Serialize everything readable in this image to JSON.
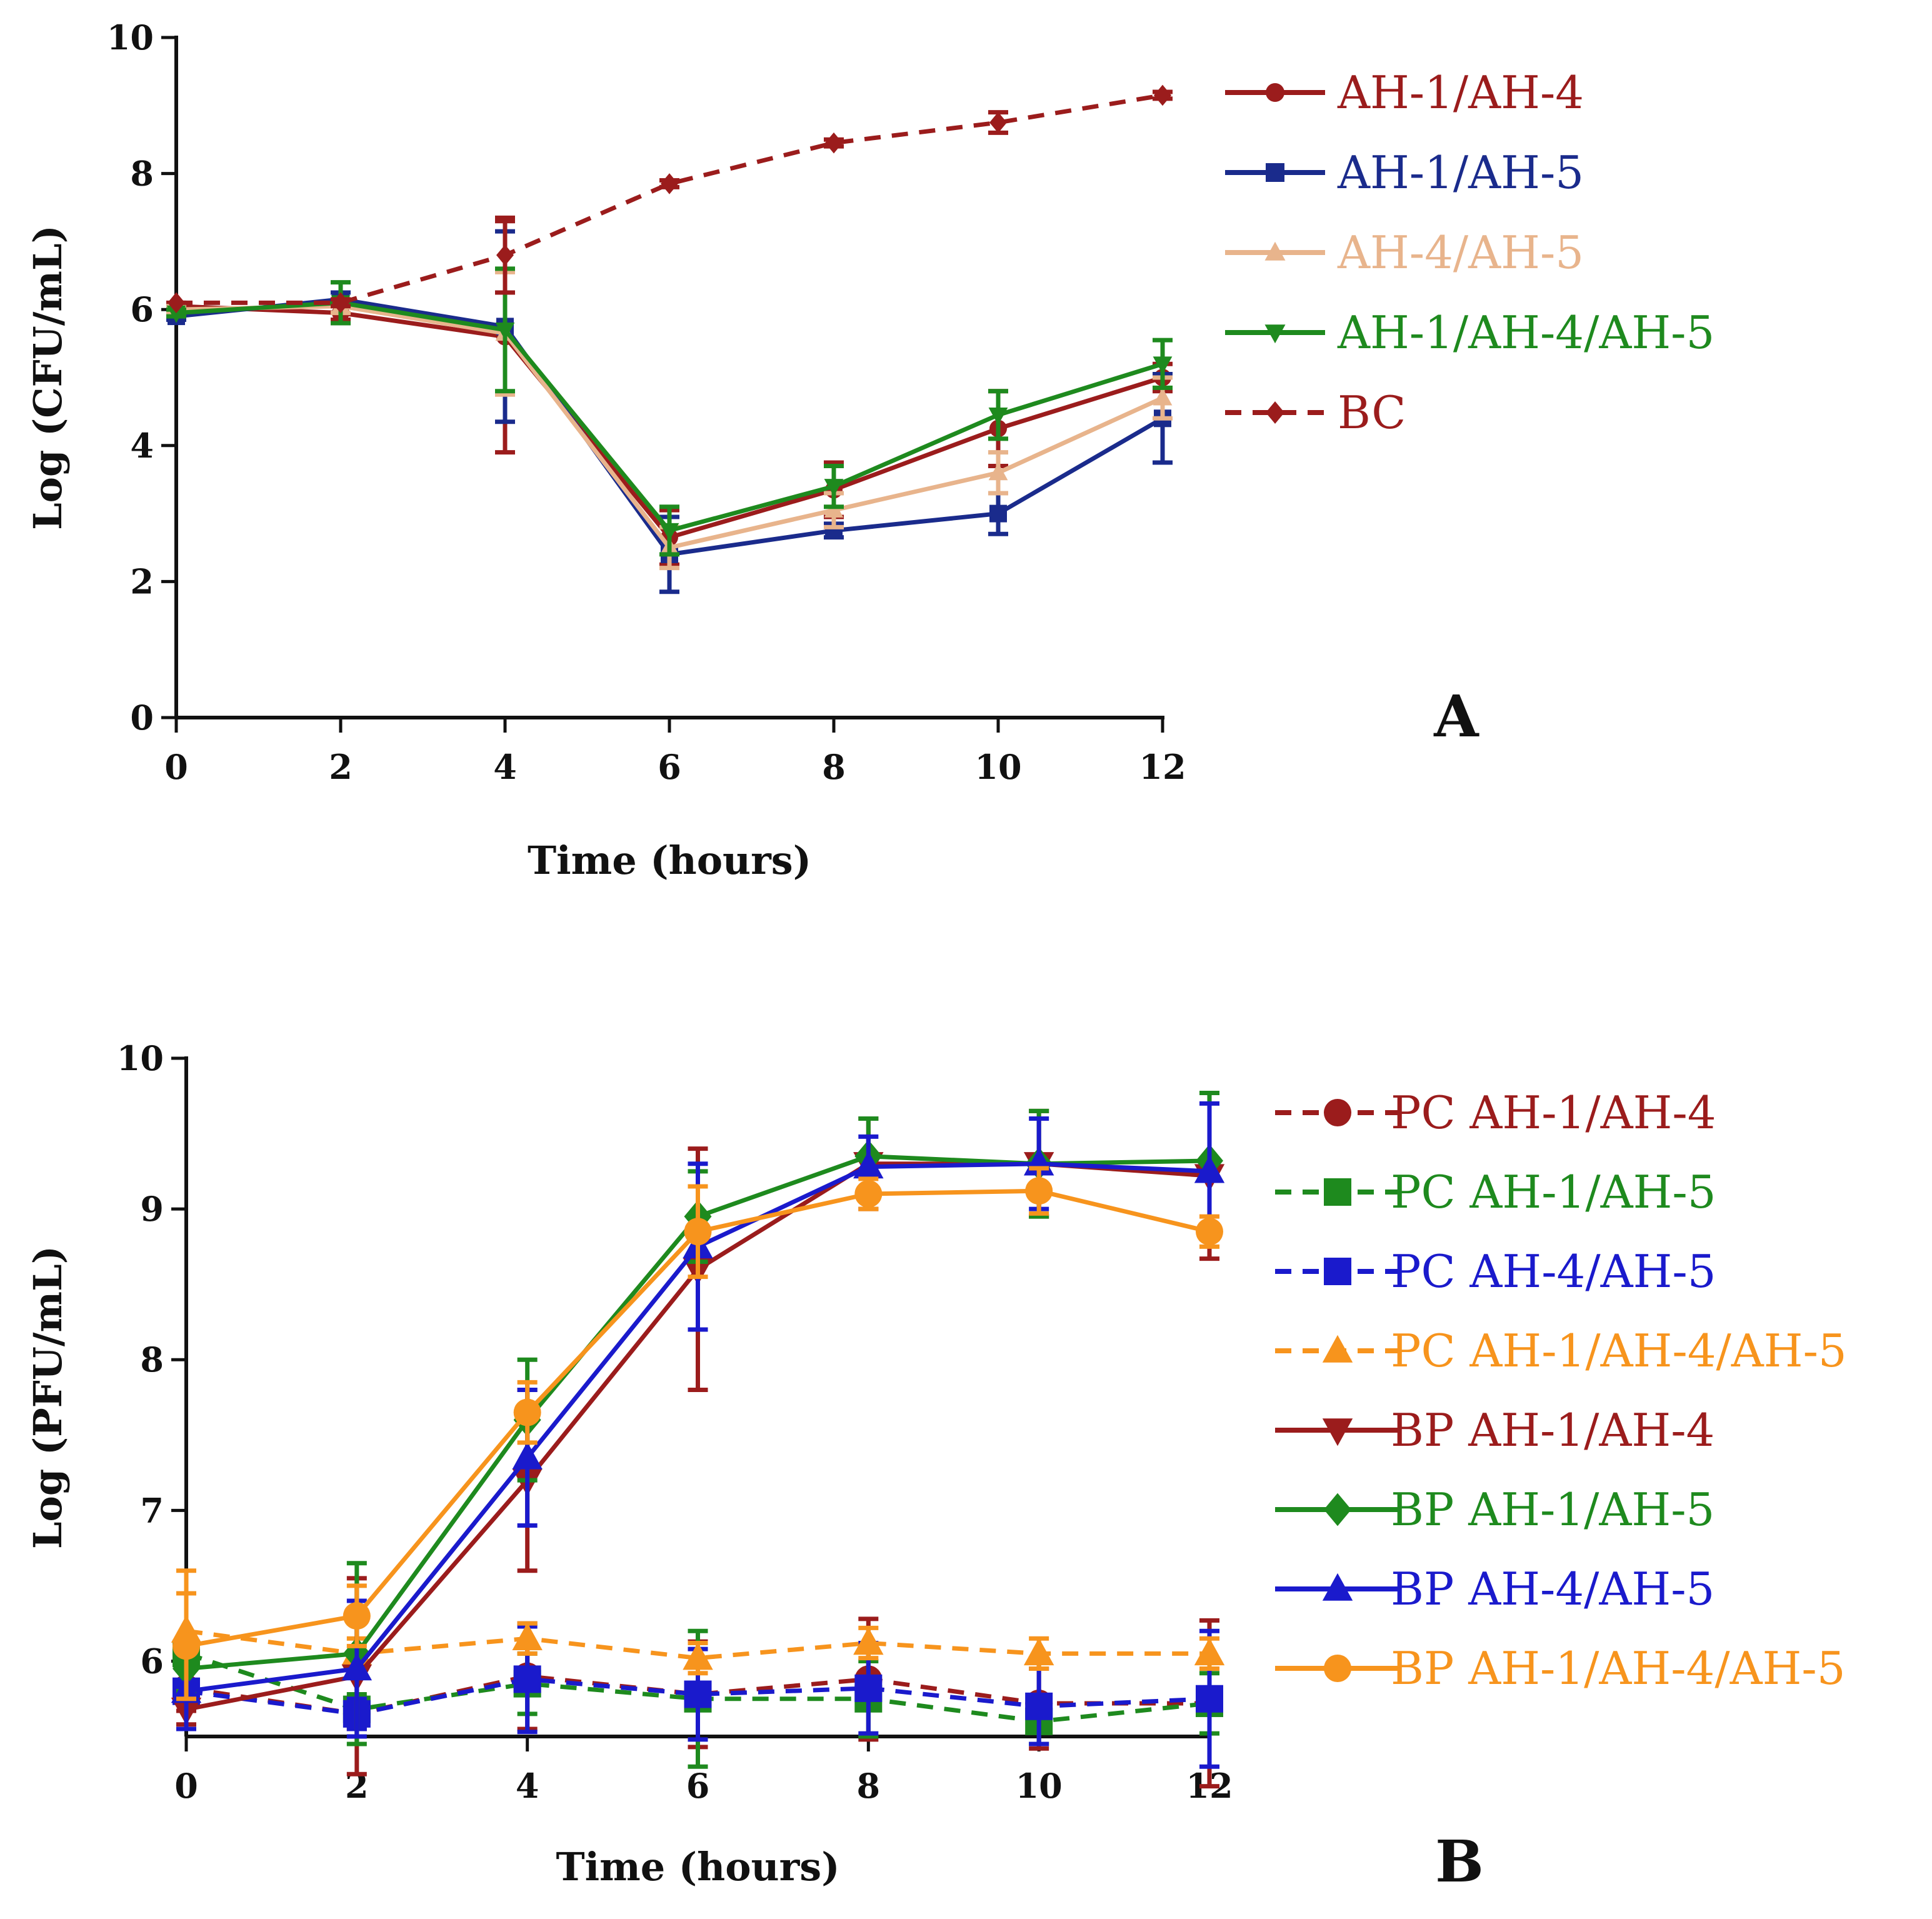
{
  "chart_data": [
    {
      "id": "A",
      "type": "line",
      "panel_label": "A",
      "xlabel": "Time (hours)",
      "ylabel": "Log (CFU/mL)",
      "xlim": [
        0,
        12
      ],
      "ylim": [
        0,
        10
      ],
      "xticks": [
        0,
        2,
        4,
        6,
        8,
        10,
        12
      ],
      "yticks": [
        0,
        2,
        4,
        6,
        8,
        10
      ],
      "grid": false,
      "legend_position": "top-right",
      "x": [
        0,
        2,
        4,
        6,
        8,
        10,
        12
      ],
      "series": [
        {
          "name": "AH-1/AH-4",
          "color": "#9b1c1c",
          "dash": false,
          "marker": "circle",
          "values": [
            6.05,
            5.95,
            5.6,
            2.65,
            3.35,
            4.25,
            5.0
          ],
          "errors": [
            0.05,
            0.1,
            1.7,
            0.4,
            0.4,
            0.55,
            0.2
          ]
        },
        {
          "name": "AH-1/AH-5",
          "color": "#1a2b8c",
          "dash": false,
          "marker": "square",
          "values": [
            5.9,
            6.15,
            5.75,
            2.4,
            2.75,
            3.0,
            4.4
          ],
          "errors": [
            0.05,
            0.1,
            1.4,
            0.55,
            0.1,
            0.3,
            0.65
          ]
        },
        {
          "name": "AH-4/AH-5",
          "color": "#e8b48c",
          "dash": false,
          "marker": "triangle",
          "values": [
            6.0,
            6.05,
            5.65,
            2.5,
            3.05,
            3.6,
            4.7
          ],
          "errors": [
            0.05,
            0.1,
            0.9,
            0.3,
            0.25,
            0.3,
            0.3
          ]
        },
        {
          "name": "AH-1/AH-4/AH-5",
          "color": "#1e8a1e",
          "dash": false,
          "marker": "triangle-down",
          "values": [
            5.95,
            6.1,
            5.7,
            2.75,
            3.4,
            4.45,
            5.2
          ],
          "errors": [
            0.05,
            0.3,
            0.9,
            0.35,
            0.3,
            0.35,
            0.35
          ]
        },
        {
          "name": "BC",
          "color": "#9b1c1c",
          "dash": true,
          "marker": "diamond",
          "values": [
            6.1,
            6.1,
            6.8,
            7.85,
            8.45,
            8.75,
            9.15
          ],
          "errors": [
            0,
            0.05,
            0.55,
            0.05,
            0.05,
            0.15,
            0.05
          ]
        }
      ]
    },
    {
      "id": "B",
      "type": "line",
      "panel_label": "B",
      "xlabel": "Time (hours)",
      "ylabel": "Log (PFU/mL)",
      "xlim": [
        0,
        12
      ],
      "ylim": [
        5.5,
        10
      ],
      "xticks": [
        0,
        2,
        4,
        6,
        8,
        10,
        12
      ],
      "yticks": [
        6,
        7,
        8,
        9,
        10
      ],
      "grid": false,
      "legend_position": "right",
      "x": [
        0,
        2,
        4,
        6,
        8,
        10,
        12
      ],
      "series": [
        {
          "name": "PC AH-1/AH-4",
          "color": "#9b1c1c",
          "dash": true,
          "marker": "circle",
          "values": [
            5.82,
            5.65,
            5.9,
            5.78,
            5.88,
            5.72,
            5.72
          ],
          "errors": [
            0.15,
            0.1,
            0.35,
            0.35,
            0.4,
            0.3,
            0.55
          ]
        },
        {
          "name": "PC AH-1/AH-5",
          "color": "#1e8a1e",
          "dash": true,
          "marker": "square",
          "values": [
            6.05,
            5.68,
            5.85,
            5.75,
            5.75,
            5.6,
            5.72
          ],
          "errors": [
            0.1,
            0.1,
            0.2,
            0.45,
            0.25,
            0.15,
            0.2
          ]
        },
        {
          "name": "PC AH-4/AH-5",
          "color": "#1a1acc",
          "dash": true,
          "marker": "square",
          "values": [
            5.8,
            5.65,
            5.88,
            5.78,
            5.82,
            5.7,
            5.75
          ],
          "errors": [
            0.25,
            0.1,
            0.35,
            0.3,
            0.3,
            0.25,
            0.45
          ]
        },
        {
          "name": "PC AH-1/AH-4/AH-5",
          "color": "#f7941d",
          "dash": true,
          "marker": "triangle",
          "values": [
            6.2,
            6.05,
            6.15,
            6.02,
            6.12,
            6.05,
            6.05
          ],
          "errors": [
            0.4,
            0.1,
            0.1,
            0.1,
            0.1,
            0.1,
            0.1
          ]
        },
        {
          "name": "BP AH-1/AH-4",
          "color": "#9b1c1c",
          "dash": false,
          "marker": "triangle-down",
          "values": [
            5.68,
            5.9,
            7.2,
            8.6,
            9.3,
            9.3,
            9.22
          ],
          "errors": [
            0.1,
            0.65,
            0.6,
            0.8,
            0.3,
            0.35,
            0.55
          ]
        },
        {
          "name": "BP AH-1/AH-5",
          "color": "#1e8a1e",
          "dash": false,
          "marker": "diamond",
          "values": [
            5.95,
            6.05,
            7.6,
            8.95,
            9.35,
            9.3,
            9.32
          ],
          "errors": [
            0.15,
            0.6,
            0.4,
            0.3,
            0.25,
            0.35,
            0.45
          ]
        },
        {
          "name": "BP AH-4/AH-5",
          "color": "#1a1acc",
          "dash": false,
          "marker": "triangle",
          "values": [
            5.8,
            5.95,
            7.35,
            8.75,
            9.28,
            9.3,
            9.25
          ],
          "errors": [
            0.25,
            0.45,
            0.45,
            0.55,
            0.2,
            0.3,
            0.45
          ]
        },
        {
          "name": "BP AH-1/AH-4/AH-5",
          "color": "#f7941d",
          "dash": false,
          "marker": "circle",
          "values": [
            6.1,
            6.3,
            7.65,
            8.85,
            9.1,
            9.12,
            8.85
          ],
          "errors": [
            0.35,
            0.2,
            0.2,
            0.3,
            0.1,
            0.15,
            0.1
          ]
        }
      ]
    }
  ]
}
